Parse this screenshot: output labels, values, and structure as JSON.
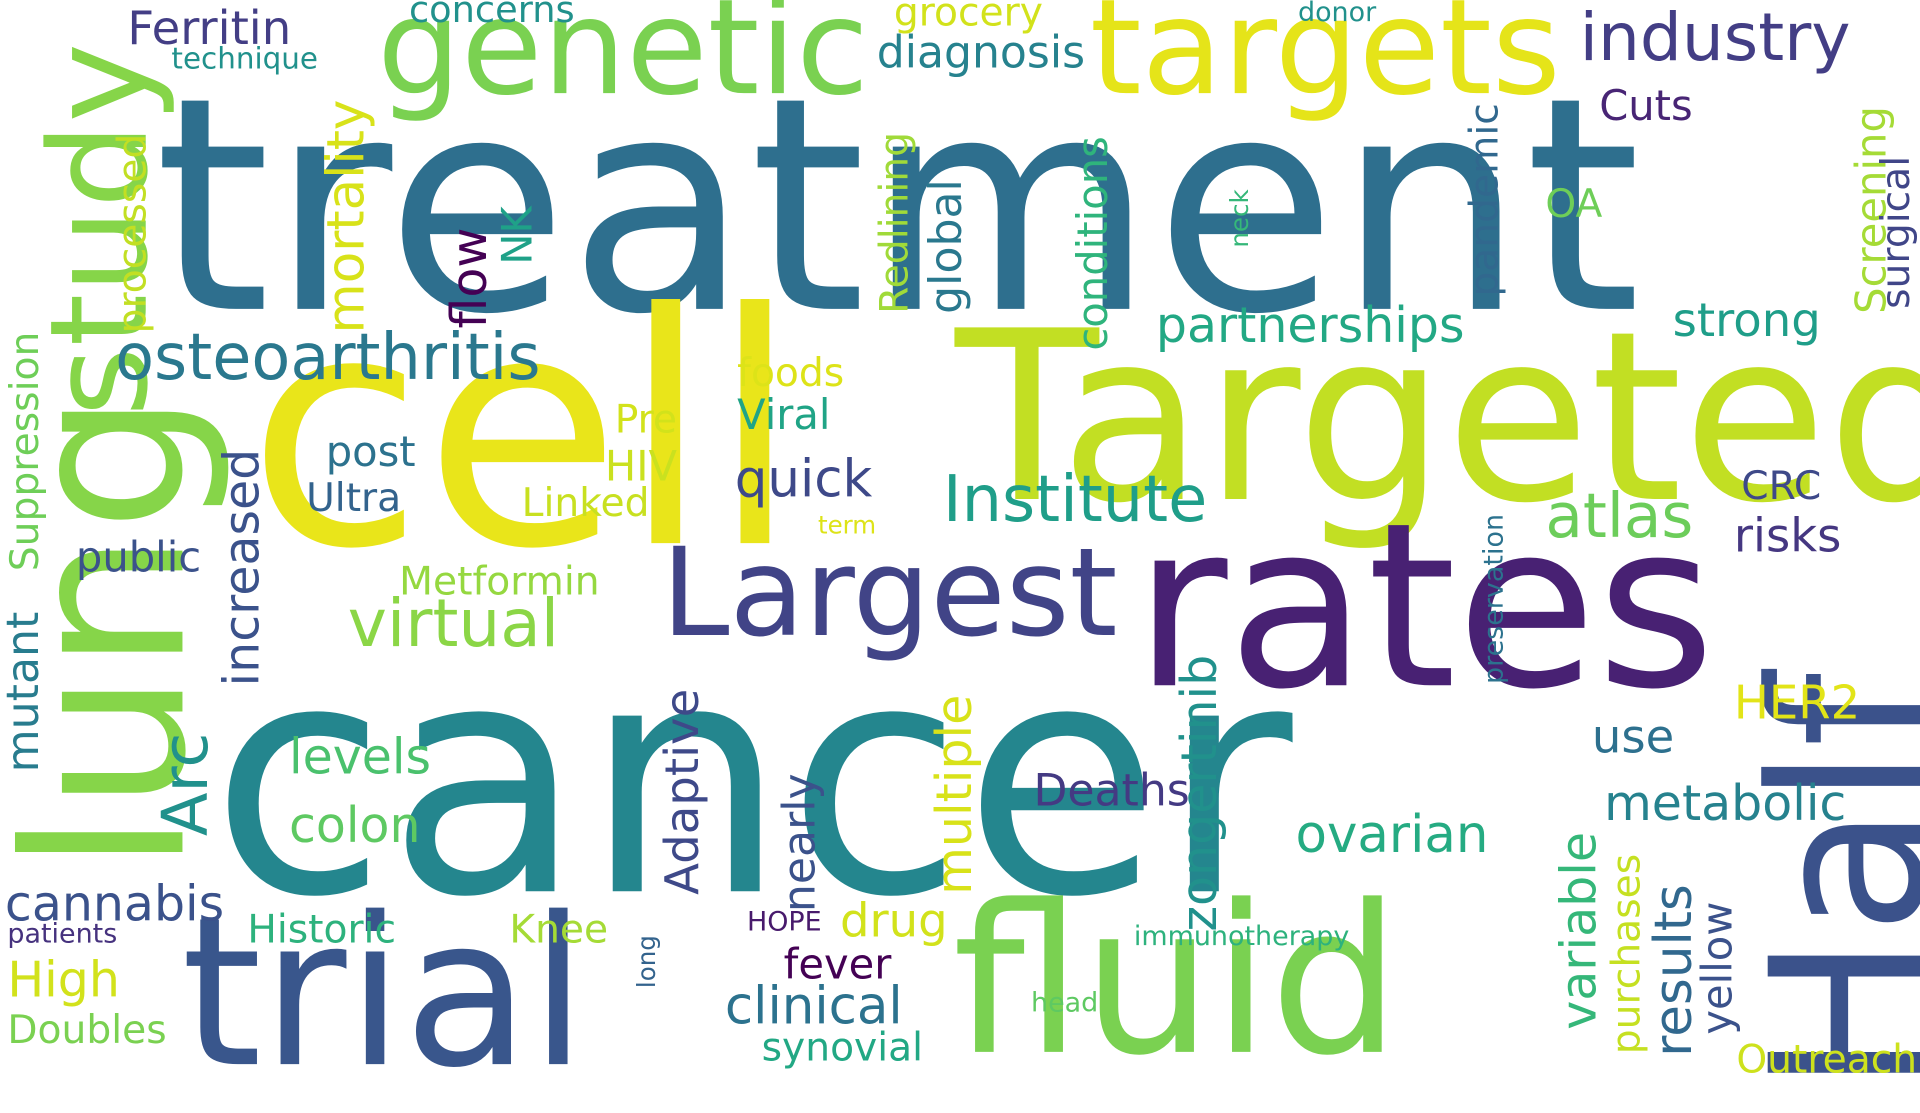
{
  "words": {
    "treatment": {
      "text": "treatment",
      "color": "#2e6f8e"
    },
    "cell": {
      "text": "cell",
      "color": "#e9e51a"
    },
    "cancer": {
      "text": "cancer",
      "color": "#24868e"
    },
    "targeted": {
      "text": "Targeted",
      "color": "#c2df23"
    },
    "rates": {
      "text": "rates",
      "color": "#482173"
    },
    "lung": {
      "text": "lung",
      "color": "#86d549"
    },
    "half": {
      "text": "Half",
      "color": "#3b528b"
    },
    "fluid": {
      "text": "fluid",
      "color": "#7ad151"
    },
    "trial": {
      "text": "trial",
      "color": "#39568c"
    },
    "genetic": {
      "text": "genetic",
      "color": "#7ad151"
    },
    "targets": {
      "text": "targets",
      "color": "#e5e419"
    },
    "largest": {
      "text": "Largest",
      "color": "#414487"
    },
    "study": {
      "text": "study",
      "color": "#86d549"
    },
    "industry": {
      "text": "industry",
      "color": "#433e85"
    },
    "osteoarthritis": {
      "text": "osteoarthritis",
      "color": "#2a788e"
    },
    "institute": {
      "text": "Institute",
      "color": "#1f9e89"
    },
    "partnerships": {
      "text": "partnerships",
      "color": "#22a884"
    },
    "atlas": {
      "text": "atlas",
      "color": "#6ccd5a"
    },
    "virtual": {
      "text": "virtual",
      "color": "#8bd646"
    },
    "ferritin": {
      "text": "Ferritin",
      "color": "#433e85"
    },
    "concerns": {
      "text": "concerns",
      "color": "#21918c"
    },
    "technique": {
      "text": "technique",
      "color": "#21918c"
    },
    "grocery": {
      "text": "grocery",
      "color": "#d2e21b"
    },
    "donor": {
      "text": "donor",
      "color": "#21918c"
    },
    "diagnosis": {
      "text": "diagnosis",
      "color": "#26828e"
    },
    "cuts": {
      "text": "Cuts",
      "color": "#482575"
    },
    "mortality": {
      "text": "mortality",
      "color": "#d8e219"
    },
    "processed": {
      "text": "processed",
      "color": "#c2df23"
    },
    "nk": {
      "text": "NK",
      "color": "#1fa188"
    },
    "flow": {
      "text": "flow",
      "color": "#440154"
    },
    "redlining": {
      "text": "Redlining",
      "color": "#a0da39"
    },
    "global": {
      "text": "global",
      "color": "#2a788e"
    },
    "conditions": {
      "text": "conditions",
      "color": "#2fb47c"
    },
    "neck": {
      "text": "neck",
      "color": "#35b779"
    },
    "pandemic": {
      "text": "pandemic",
      "color": "#31688e"
    },
    "oa": {
      "text": "OA",
      "color": "#6ece58"
    },
    "screening": {
      "text": "Screening",
      "color": "#a5db36"
    },
    "surgical": {
      "text": "surgical",
      "color": "#404688"
    },
    "strong": {
      "text": "strong",
      "color": "#1f9e89"
    },
    "foods": {
      "text": "foods",
      "color": "#dde318"
    },
    "viral": {
      "text": "Viral",
      "color": "#20a486"
    },
    "pre": {
      "text": "Pre",
      "color": "#d2e21b"
    },
    "post": {
      "text": "post",
      "color": "#2c728e"
    },
    "hiv": {
      "text": "HIV",
      "color": "#cae11f"
    },
    "ultra": {
      "text": "Ultra",
      "color": "#33638d"
    },
    "linked": {
      "text": "Linked",
      "color": "#c8e020"
    },
    "quick": {
      "text": "quick",
      "color": "#3e4989"
    },
    "term": {
      "text": "term",
      "color": "#dde318"
    },
    "suppression": {
      "text": "Suppression",
      "color": "#6ece58"
    },
    "increased": {
      "text": "increased",
      "color": "#3b528b"
    },
    "public": {
      "text": "public",
      "color": "#3b528b"
    },
    "metformin": {
      "text": "Metformin",
      "color": "#95d840"
    },
    "crc": {
      "text": "CRC",
      "color": "#3e4989"
    },
    "risks": {
      "text": "risks",
      "color": "#453781"
    },
    "preservation": {
      "text": "preservation",
      "color": "#2c728e"
    },
    "mutant": {
      "text": "mutant",
      "color": "#287c8e"
    },
    "arc": {
      "text": "Arc",
      "color": "#21918c"
    },
    "levels": {
      "text": "levels",
      "color": "#4ac16d"
    },
    "colon": {
      "text": "colon",
      "color": "#5ec962"
    },
    "adaptive": {
      "text": "Adaptive",
      "color": "#3e4989"
    },
    "multiple": {
      "text": "multiple",
      "color": "#d8e219"
    },
    "zongertinib": {
      "text": "zongertinib",
      "color": "#21918c"
    },
    "her2": {
      "text": "HER2",
      "color": "#e2e418"
    },
    "use": {
      "text": "use",
      "color": "#2d708e"
    },
    "deaths": {
      "text": "Deaths",
      "color": "#443a83"
    },
    "metabolic": {
      "text": "metabolic",
      "color": "#26828e"
    },
    "ovarian": {
      "text": "ovarian",
      "color": "#25ab82"
    },
    "nearly": {
      "text": "nearly",
      "color": "#3b528b"
    },
    "cannabis": {
      "text": "cannabis",
      "color": "#3b528b"
    },
    "patients": {
      "text": "patients",
      "color": "#46327e"
    },
    "high": {
      "text": "High",
      "color": "#d2e21b"
    },
    "doubles": {
      "text": "Doubles",
      "color": "#7ad151"
    },
    "historic": {
      "text": "Historic",
      "color": "#2db27d"
    },
    "knee": {
      "text": "Knee",
      "color": "#a5db36"
    },
    "long": {
      "text": "long",
      "color": "#33638d"
    },
    "hope": {
      "text": "HOPE",
      "color": "#481a6c"
    },
    "drug": {
      "text": "drug",
      "color": "#d2e21b"
    },
    "fever": {
      "text": "fever",
      "color": "#440154"
    },
    "clinical": {
      "text": "clinical",
      "color": "#2c728e"
    },
    "synovial": {
      "text": "synovial",
      "color": "#22a884"
    },
    "immunotherapy": {
      "text": "immunotherapy",
      "color": "#2db27d"
    },
    "head": {
      "text": "head",
      "color": "#5ec962"
    },
    "variable": {
      "text": "variable",
      "color": "#35b779"
    },
    "purchases": {
      "text": "purchases",
      "color": "#c5e021"
    },
    "results": {
      "text": "results",
      "color": "#31688e"
    },
    "yellow": {
      "text": "yellow",
      "color": "#3b528b"
    },
    "outreach": {
      "text": "Outreach",
      "color": "#cde11d"
    }
  }
}
